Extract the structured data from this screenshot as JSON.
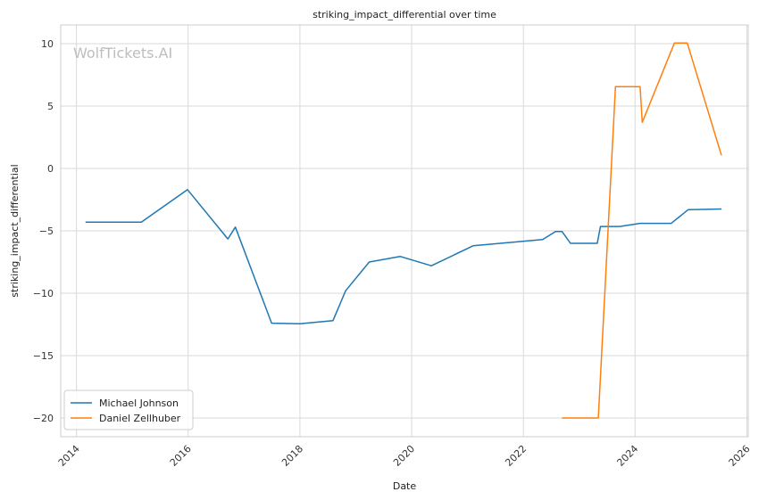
{
  "chart_data": {
    "type": "line",
    "title": "striking_impact_differential over time",
    "xlabel": "Date",
    "ylabel": "striking_impact_differential",
    "watermark": "WolfTickets.AI",
    "xlim": [
      "2013-09-20",
      "2026-01-10"
    ],
    "ylim": [
      -21.5,
      11.5
    ],
    "x_ticks": [
      "2014",
      "2016",
      "2018",
      "2020",
      "2022",
      "2024",
      "2026"
    ],
    "y_ticks": [
      10,
      5,
      0,
      -5,
      -10,
      -15,
      -20
    ],
    "y_tick_labels": [
      "10",
      "5",
      "0",
      "−5",
      "−10",
      "−15",
      "−20"
    ],
    "grid": true,
    "legend_position": "lower-left",
    "series": [
      {
        "name": "Michael Johnson",
        "color": "#1f77b4",
        "points": [
          {
            "x": "2014-03-01",
            "y": -4.3
          },
          {
            "x": "2015-03-01",
            "y": -4.3
          },
          {
            "x": "2015-12-28",
            "y": -1.7
          },
          {
            "x": "2016-09-17",
            "y": -5.65
          },
          {
            "x": "2016-11-05",
            "y": -4.7
          },
          {
            "x": "2017-06-30",
            "y": -12.4
          },
          {
            "x": "2018-01-01",
            "y": -12.45
          },
          {
            "x": "2018-08-05",
            "y": -12.2
          },
          {
            "x": "2018-10-27",
            "y": -9.8
          },
          {
            "x": "2019-03-30",
            "y": -7.5
          },
          {
            "x": "2019-10-18",
            "y": -7.05
          },
          {
            "x": "2020-05-09",
            "y": -7.8
          },
          {
            "x": "2021-02-06",
            "y": -6.2
          },
          {
            "x": "2022-05-07",
            "y": -5.7
          },
          {
            "x": "2022-07-30",
            "y": -5.05
          },
          {
            "x": "2022-09-10",
            "y": -5.05
          },
          {
            "x": "2022-11-05",
            "y": -6.0
          },
          {
            "x": "2023-04-29",
            "y": -6.0
          },
          {
            "x": "2023-05-20",
            "y": -4.65
          },
          {
            "x": "2023-09-23",
            "y": -4.65
          },
          {
            "x": "2024-02-03",
            "y": -4.4
          },
          {
            "x": "2024-08-24",
            "y": -4.4
          },
          {
            "x": "2024-12-14",
            "y": -3.3
          },
          {
            "x": "2025-07-19",
            "y": -3.25
          }
        ]
      },
      {
        "name": "Daniel Zellhuber",
        "color": "#ff7f0e",
        "points": [
          {
            "x": "2022-09-10",
            "y": -20.0
          },
          {
            "x": "2023-05-06",
            "y": -20.0
          },
          {
            "x": "2023-08-26",
            "y": 6.55
          },
          {
            "x": "2024-02-03",
            "y": 6.55
          },
          {
            "x": "2024-02-17",
            "y": 3.7
          },
          {
            "x": "2024-09-14",
            "y": 10.05
          },
          {
            "x": "2024-12-07",
            "y": 10.05
          },
          {
            "x": "2025-07-19",
            "y": 1.05
          }
        ]
      }
    ]
  }
}
